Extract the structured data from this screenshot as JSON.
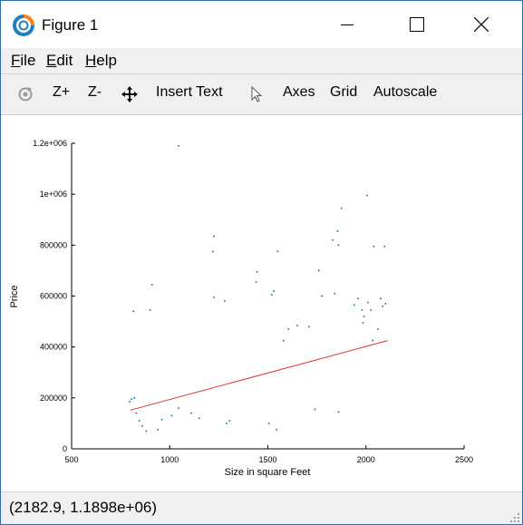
{
  "window": {
    "title": "Figure 1",
    "controls": {
      "minimize_icon": "minimize-icon",
      "maximize_icon": "maximize-icon",
      "close_icon": "close-icon"
    }
  },
  "menu": [
    {
      "label": "File"
    },
    {
      "label": "Edit"
    },
    {
      "label": "Help"
    }
  ],
  "toolbar": {
    "rotate_icon": "rotate-icon",
    "zoom_in": "Z+",
    "zoom_out": "Z-",
    "pan_icon": "pan-icon",
    "insert_text": "Insert Text",
    "select_icon": "select-arrow-icon",
    "axes": "Axes",
    "grid": "Grid",
    "autoscale": "Autoscale"
  },
  "status": {
    "coordinates": "(2182.9, 1.1898e+06)"
  },
  "chart_data": {
    "type": "scatter",
    "title": "",
    "xlabel": "Size in square Feet",
    "ylabel": "Price",
    "xlim": [
      500,
      2500
    ],
    "ylim": [
      0,
      1200000
    ],
    "xticks": [
      "500",
      "1000",
      "1500",
      "2000",
      "2500"
    ],
    "yticks": [
      "0",
      "200000",
      "400000",
      "600000",
      "800000",
      "1e+006",
      "1.2e+006"
    ],
    "grid": false,
    "colors": {
      "points": "#0a6e9c",
      "fit_line": "#e03030"
    },
    "fit_line": {
      "x": [
        800,
        2110
      ],
      "y": [
        152000,
        425000
      ]
    },
    "series": [
      {
        "x": [
          1045,
          1225,
          1220,
          1550,
          1875,
          1855,
          1830,
          1860,
          2005,
          2040,
          2095,
          1445,
          1440,
          1960,
          2010,
          2075,
          2100,
          1530,
          1520,
          1225,
          1280,
          1760,
          1775,
          1840,
          1940,
          1980,
          2025,
          2085,
          910,
          815,
          900,
          845,
          1710,
          1650,
          1605,
          1580,
          1990,
          1985,
          2035,
          2060,
          1860,
          1740,
          1545,
          1505,
          1305,
          1290,
          1150,
          1110,
          1045,
          1010,
          960,
          940,
          880,
          860,
          830,
          820,
          805,
          795
        ],
        "y": [
          1190000,
          835000,
          775000,
          775000,
          945000,
          855000,
          820000,
          800000,
          995000,
          795000,
          795000,
          695000,
          655000,
          590000,
          575000,
          590000,
          570000,
          620000,
          605000,
          595000,
          580000,
          700000,
          600000,
          610000,
          565000,
          545000,
          545000,
          560000,
          645000,
          540000,
          545000,
          110000,
          480000,
          485000,
          470000,
          425000,
          520000,
          495000,
          425000,
          470000,
          145000,
          155000,
          75000,
          100000,
          110000,
          100000,
          120000,
          140000,
          160000,
          130000,
          115000,
          75000,
          70000,
          90000,
          140000,
          200000,
          195000,
          185000
        ]
      }
    ]
  }
}
